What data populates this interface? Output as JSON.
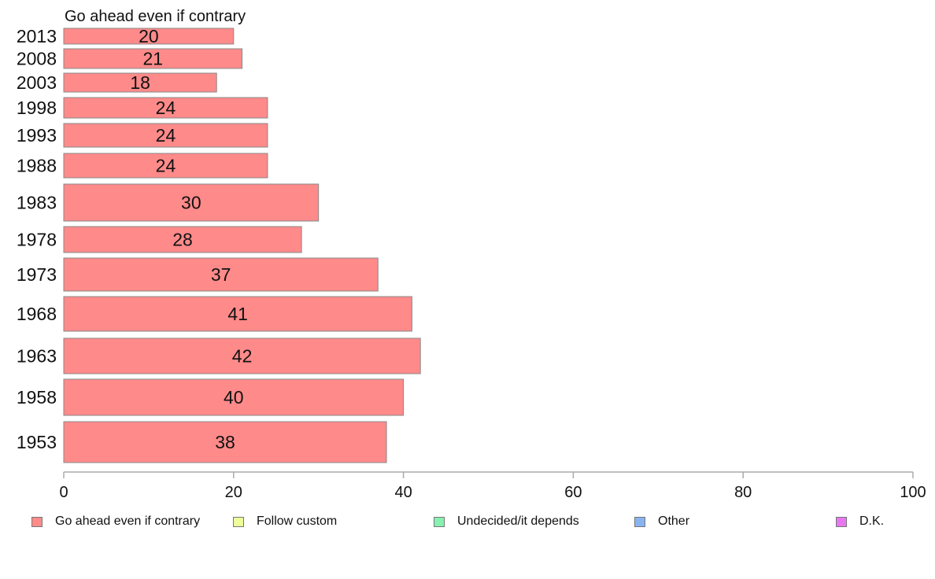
{
  "chart_data": {
    "type": "bar",
    "orientation": "horizontal",
    "title": "Go ahead even if contrary",
    "categories": [
      "2013",
      "2008",
      "2003",
      "1998",
      "1993",
      "1988",
      "1983",
      "1978",
      "1973",
      "1968",
      "1963",
      "1958",
      "1953"
    ],
    "series": [
      {
        "name": "Go ahead even if contrary",
        "values": [
          20,
          21,
          18,
          24,
          24,
          24,
          30,
          28,
          37,
          41,
          42,
          40,
          38
        ],
        "color": "#ff8a8a"
      }
    ],
    "xlim": [
      0,
      100
    ],
    "xticks": [
      0,
      20,
      40,
      60,
      80,
      100
    ],
    "grid": false,
    "legend_position": "bottom",
    "legend": [
      {
        "label": "Go ahead even if contrary",
        "color": "#ff8a8a"
      },
      {
        "label": "Follow custom",
        "color": "#eeff99"
      },
      {
        "label": "Undecided/it depends",
        "color": "#88f0b0"
      },
      {
        "label": "Other",
        "color": "#88b4f0"
      },
      {
        "label": "D.K.",
        "color": "#e878f0"
      }
    ]
  }
}
